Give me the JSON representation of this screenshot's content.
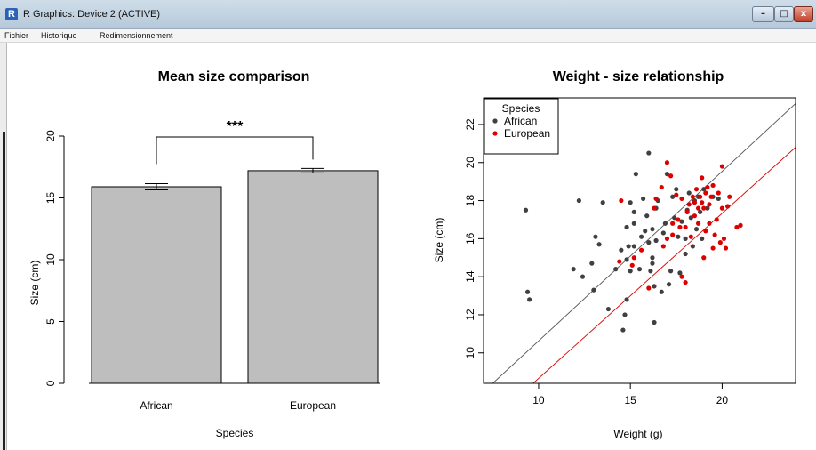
{
  "window": {
    "title": "R Graphics: Device 2 (ACTIVE)",
    "logo_text": "R",
    "controls": {
      "minimize": "–",
      "maximize": "□",
      "close": "x"
    }
  },
  "menu": {
    "items": [
      "Fichier",
      "Historique",
      "Redimensionnement"
    ]
  },
  "chart_data": [
    {
      "type": "bar",
      "title": "Mean size comparison",
      "xlabel": "Species",
      "ylabel": "Size (cm)",
      "categories": [
        "African",
        "European"
      ],
      "values": [
        15.9,
        17.2
      ],
      "errors": [
        0.25,
        0.18
      ],
      "ylim": [
        0,
        20
      ],
      "yticks": [
        0,
        5,
        10,
        15,
        20
      ],
      "significance": "***",
      "bar_color": "#bebebe"
    },
    {
      "type": "scatter",
      "title": "Weight - size relationship",
      "xlabel": "Weight (g)",
      "ylabel": "Size (cm)",
      "xlim": [
        7,
        24
      ],
      "ylim": [
        8.4,
        23.4
      ],
      "xticks": [
        10,
        15,
        20
      ],
      "yticks": [
        10,
        12,
        14,
        16,
        18,
        20,
        22
      ],
      "legend": {
        "title": "Species",
        "position": "top-left"
      },
      "series": [
        {
          "name": "African",
          "color": "#404040",
          "points": [
            [
              9.3,
              17.5
            ],
            [
              9.4,
              13.2
            ],
            [
              9.5,
              12.8
            ],
            [
              11.9,
              14.4
            ],
            [
              12.2,
              18.0
            ],
            [
              12.4,
              14.0
            ],
            [
              12.9,
              14.7
            ],
            [
              13.0,
              13.3
            ],
            [
              13.1,
              16.1
            ],
            [
              13.3,
              15.7
            ],
            [
              13.5,
              17.9
            ],
            [
              13.8,
              12.3
            ],
            [
              14.2,
              14.4
            ],
            [
              14.5,
              15.4
            ],
            [
              14.6,
              11.2
            ],
            [
              14.7,
              12.0
            ],
            [
              14.8,
              12.8
            ],
            [
              14.8,
              14.9
            ],
            [
              14.9,
              15.6
            ],
            [
              15.0,
              14.3
            ],
            [
              14.8,
              16.6
            ],
            [
              15.0,
              17.9
            ],
            [
              15.2,
              15.6
            ],
            [
              15.2,
              16.8
            ],
            [
              15.2,
              17.4
            ],
            [
              15.3,
              19.4
            ],
            [
              15.5,
              14.4
            ],
            [
              15.6,
              16.1
            ],
            [
              15.7,
              18.1
            ],
            [
              15.8,
              16.4
            ],
            [
              15.9,
              17.2
            ],
            [
              16.0,
              15.8
            ],
            [
              16.0,
              20.5
            ],
            [
              16.1,
              14.3
            ],
            [
              16.2,
              14.7
            ],
            [
              16.2,
              15.0
            ],
            [
              16.2,
              16.5
            ],
            [
              16.3,
              11.6
            ],
            [
              16.3,
              13.5
            ],
            [
              16.4,
              15.9
            ],
            [
              16.4,
              17.6
            ],
            [
              16.5,
              18.0
            ],
            [
              16.7,
              13.2
            ],
            [
              16.8,
              16.3
            ],
            [
              16.9,
              16.8
            ],
            [
              17.0,
              19.4
            ],
            [
              17.1,
              13.6
            ],
            [
              17.2,
              14.3
            ],
            [
              17.3,
              18.2
            ],
            [
              17.4,
              17.1
            ],
            [
              17.5,
              18.6
            ],
            [
              17.6,
              16.1
            ],
            [
              17.7,
              14.2
            ],
            [
              17.8,
              16.9
            ],
            [
              18.0,
              15.2
            ],
            [
              18.0,
              16.0
            ],
            [
              18.1,
              17.5
            ],
            [
              18.2,
              18.4
            ],
            [
              18.3,
              17.1
            ],
            [
              18.4,
              15.6
            ],
            [
              18.5,
              18.0
            ],
            [
              18.6,
              16.5
            ],
            [
              18.7,
              18.2
            ],
            [
              18.8,
              17.4
            ],
            [
              18.9,
              16.0
            ],
            [
              19.0,
              18.6
            ],
            [
              19.2,
              17.6
            ],
            [
              19.5,
              18.2
            ],
            [
              19.8,
              18.1
            ]
          ]
        },
        {
          "name": "European",
          "color": "#dd0000",
          "points": [
            [
              14.4,
              14.8
            ],
            [
              14.5,
              18.0
            ],
            [
              15.1,
              14.6
            ],
            [
              15.2,
              15.0
            ],
            [
              15.6,
              15.4
            ],
            [
              16.0,
              13.4
            ],
            [
              16.3,
              17.6
            ],
            [
              16.4,
              18.1
            ],
            [
              16.7,
              18.7
            ],
            [
              16.8,
              15.6
            ],
            [
              17.0,
              20.0
            ],
            [
              17.0,
              16.0
            ],
            [
              17.2,
              19.3
            ],
            [
              17.3,
              16.2
            ],
            [
              17.3,
              16.8
            ],
            [
              17.5,
              18.3
            ],
            [
              17.6,
              17.0
            ],
            [
              17.7,
              16.6
            ],
            [
              17.8,
              14.0
            ],
            [
              17.8,
              18.1
            ],
            [
              18.0,
              16.6
            ],
            [
              18.0,
              13.7
            ],
            [
              18.1,
              17.4
            ],
            [
              18.2,
              17.8
            ],
            [
              18.3,
              16.1
            ],
            [
              18.4,
              18.2
            ],
            [
              18.5,
              17.9
            ],
            [
              18.5,
              17.2
            ],
            [
              18.6,
              18.6
            ],
            [
              18.7,
              16.8
            ],
            [
              18.7,
              17.6
            ],
            [
              18.8,
              18.2
            ],
            [
              18.9,
              17.9
            ],
            [
              18.9,
              19.2
            ],
            [
              19.0,
              17.6
            ],
            [
              19.0,
              15.0
            ],
            [
              19.1,
              18.4
            ],
            [
              19.1,
              16.4
            ],
            [
              19.2,
              18.7
            ],
            [
              19.3,
              17.8
            ],
            [
              19.3,
              16.8
            ],
            [
              19.4,
              18.2
            ],
            [
              19.5,
              18.8
            ],
            [
              19.5,
              15.5
            ],
            [
              19.6,
              16.2
            ],
            [
              19.7,
              17.0
            ],
            [
              19.8,
              18.4
            ],
            [
              19.9,
              15.8
            ],
            [
              20.0,
              19.8
            ],
            [
              20.0,
              17.6
            ],
            [
              20.1,
              16.0
            ],
            [
              20.2,
              15.5
            ],
            [
              20.3,
              17.7
            ],
            [
              20.4,
              18.2
            ],
            [
              20.8,
              16.6
            ],
            [
              21.0,
              16.7
            ]
          ]
        }
      ],
      "lines": [
        {
          "color": "#555555",
          "from": [
            7.5,
            8.4
          ],
          "to": [
            24,
            23.1
          ]
        },
        {
          "color": "#dd0000",
          "from": [
            9.7,
            8.4
          ],
          "to": [
            24,
            20.8
          ]
        }
      ]
    }
  ]
}
